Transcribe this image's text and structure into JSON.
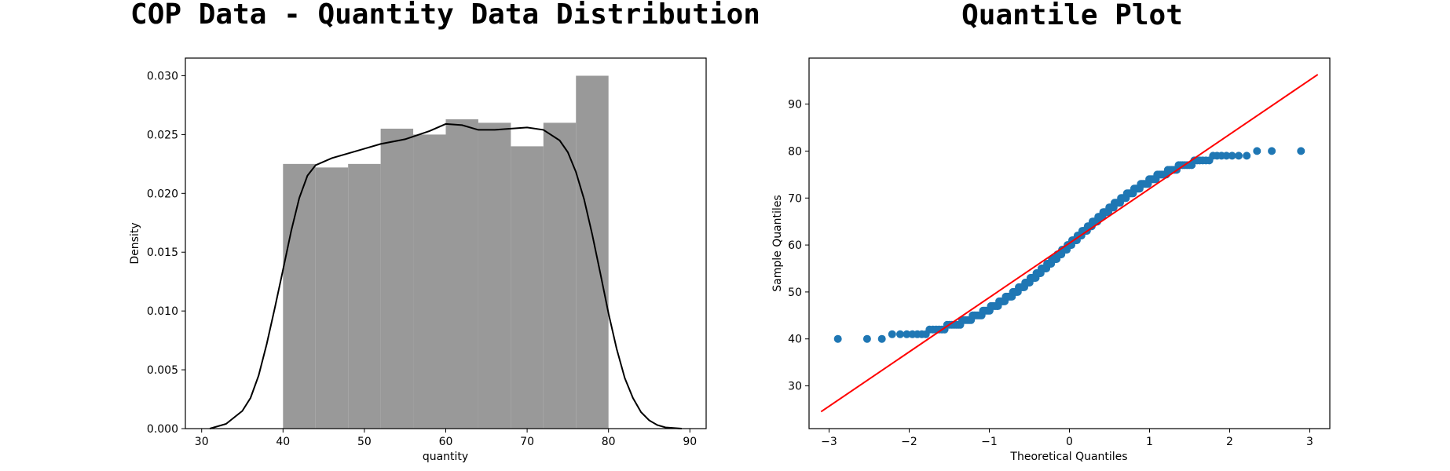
{
  "chart_data": [
    {
      "type": "bar",
      "title": "COP Data - Quantity Data Distribution",
      "xlabel": "quantity",
      "ylabel": "Density",
      "xlim": [
        28,
        92
      ],
      "ylim": [
        0,
        0.0315
      ],
      "xticks": [
        30,
        40,
        50,
        60,
        70,
        80,
        90
      ],
      "yticks": [
        0.0,
        0.005,
        0.01,
        0.015,
        0.02,
        0.025,
        0.03
      ],
      "bins": [
        {
          "x0": 40,
          "x1": 44,
          "density": 0.0225
        },
        {
          "x0": 44,
          "x1": 48,
          "density": 0.0222
        },
        {
          "x0": 48,
          "x1": 52,
          "density": 0.0225
        },
        {
          "x0": 52,
          "x1": 56,
          "density": 0.0255
        },
        {
          "x0": 56,
          "x1": 60,
          "density": 0.025
        },
        {
          "x0": 60,
          "x1": 64,
          "density": 0.0263
        },
        {
          "x0": 64,
          "x1": 68,
          "density": 0.026
        },
        {
          "x0": 68,
          "x1": 72,
          "density": 0.024
        },
        {
          "x0": 72,
          "x1": 76,
          "density": 0.026
        },
        {
          "x0": 76,
          "x1": 80,
          "density": 0.03
        }
      ],
      "kde": {
        "x": [
          31,
          33,
          35,
          36,
          37,
          38,
          39,
          40,
          41,
          42,
          43,
          44,
          46,
          48,
          50,
          52,
          55,
          58,
          60,
          62,
          64,
          66,
          68,
          70,
          72,
          74,
          75,
          76,
          77,
          78,
          79,
          80,
          81,
          82,
          83,
          84,
          85,
          86,
          87,
          89
        ],
        "y": [
          0.0,
          0.0004,
          0.0015,
          0.0026,
          0.0045,
          0.0072,
          0.0103,
          0.0135,
          0.0168,
          0.0196,
          0.0215,
          0.0224,
          0.023,
          0.0234,
          0.0238,
          0.0242,
          0.0246,
          0.0253,
          0.0259,
          0.0258,
          0.0254,
          0.0254,
          0.0255,
          0.0256,
          0.0254,
          0.0245,
          0.0235,
          0.0218,
          0.0195,
          0.0165,
          0.0132,
          0.0098,
          0.0068,
          0.0043,
          0.0026,
          0.0014,
          0.0007,
          0.0003,
          0.0001,
          0.0
        ]
      },
      "colors": {
        "bars": "#999999",
        "kde": "#000000"
      }
    },
    {
      "type": "scatter",
      "title": "Quantile Plot",
      "xlabel": "Theoretical Quantiles",
      "ylabel": "Sample Quantiles",
      "xlim": [
        -3.25,
        3.25
      ],
      "ylim": [
        20.9,
        99.8
      ],
      "xticks": [
        -3,
        -2,
        -1,
        0,
        1,
        2,
        3
      ],
      "yticks": [
        30,
        40,
        50,
        60,
        70,
        80,
        90
      ],
      "reference_line": {
        "x": [
          -3.1,
          3.1
        ],
        "y": [
          24.5,
          96.3
        ]
      },
      "n_points": 260,
      "colors": {
        "points": "#1f77b4",
        "line": "#ff0000"
      }
    }
  ]
}
